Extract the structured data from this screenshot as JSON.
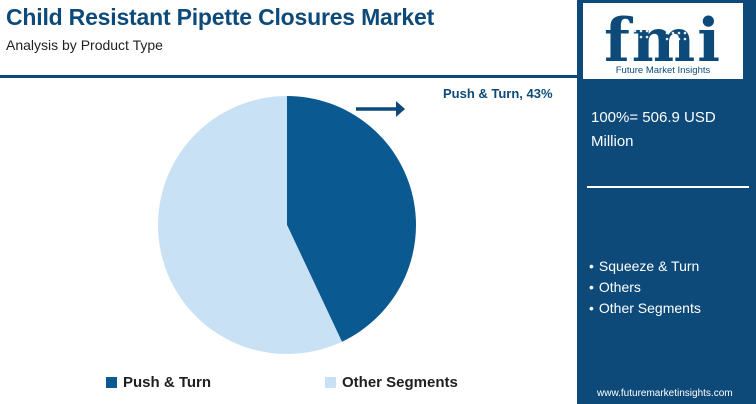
{
  "header": {
    "title": "Child Resistant Pipette Closures Market",
    "subtitle": "Analysis by Product Type"
  },
  "sidebar": {
    "logo_text": "fmi",
    "logo_caption": "Future Market Insights",
    "total": "100%= 506.9 USD Million",
    "segments": [
      "Squeeze & Turn",
      "Others",
      "Other Segments"
    ],
    "website": "www.futuremarketinsights.com"
  },
  "colors": {
    "brand_blue": "#0d4a7a",
    "push_turn": "#0a5a91",
    "other_segments": "#c9e1f4"
  },
  "icons": {
    "arrow": "arrow-right-icon"
  },
  "chart_data": {
    "type": "pie",
    "categories": [
      "Push & Turn",
      "Other Segments"
    ],
    "values": [
      43,
      57
    ],
    "unit": "%",
    "data_labels": [
      "Push & Turn, 43%"
    ],
    "legend": [
      "Push & Turn",
      "Other Segments"
    ],
    "legend_position": "bottom"
  }
}
